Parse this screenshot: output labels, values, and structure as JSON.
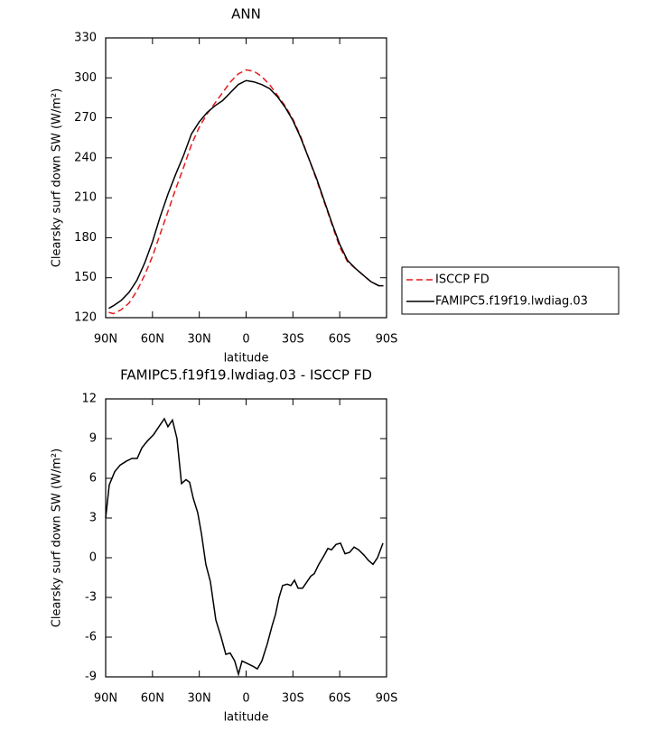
{
  "chart_data": [
    {
      "type": "line",
      "title": "ANN",
      "xlabel": "latitude",
      "ylabel": "Clearsky surf down SW (W/m²)",
      "xlim": [
        90,
        -90
      ],
      "xticks": [
        {
          "value": 90,
          "label": "90N"
        },
        {
          "value": 60,
          "label": "60N"
        },
        {
          "value": 30,
          "label": "30N"
        },
        0,
        {
          "value": -30,
          "label": "30S"
        },
        {
          "value": -60,
          "label": "60S"
        },
        {
          "value": -90,
          "label": "90S"
        }
      ],
      "ylim": [
        120,
        330
      ],
      "yticks": [
        120,
        150,
        180,
        210,
        240,
        270,
        300,
        330
      ],
      "legend": "right",
      "x": [
        88,
        85,
        80,
        75,
        70,
        65,
        60,
        55,
        50,
        45,
        40,
        35,
        30,
        25,
        20,
        15,
        10,
        5,
        0,
        -5,
        -10,
        -15,
        -20,
        -25,
        -30,
        -35,
        -40,
        -45,
        -50,
        -55,
        -60,
        -65,
        -70,
        -75,
        -80,
        -85,
        -88
      ],
      "series": [
        {
          "name": "ISCCP FD",
          "color": "#e41a1c",
          "line_style": "dashed",
          "values": [
            124,
            123,
            126,
            131,
            140,
            152,
            166,
            183,
            200,
            217,
            233,
            250,
            263,
            273,
            281,
            289,
            297,
            303,
            306,
            305,
            301,
            295,
            287,
            279,
            269,
            256,
            240,
            224,
            207,
            190,
            173,
            162,
            157,
            152,
            147,
            144,
            144
          ]
        },
        {
          "name": "FAMIPC5.f19f19.lwdiag.03",
          "color": "#000000",
          "line_style": "solid",
          "values": [
            127,
            129,
            133,
            139,
            148,
            161,
            177,
            196,
            213,
            228,
            242,
            258,
            267,
            274,
            279,
            283,
            289,
            295,
            298,
            297,
            295,
            292,
            286,
            278,
            268,
            255,
            240,
            225,
            208,
            191,
            175,
            163,
            157,
            152,
            147,
            144,
            144
          ]
        }
      ]
    },
    {
      "type": "line",
      "title": "FAMIPC5.f19f19.lwdiag.03 - ISCCP FD",
      "xlabel": "latitude",
      "ylabel": "Clearsky surf down SW (W/m²)",
      "xlim": [
        90,
        -90
      ],
      "xticks": [
        {
          "value": 90,
          "label": "90N"
        },
        {
          "value": 60,
          "label": "60N"
        },
        {
          "value": 30,
          "label": "30N"
        },
        0,
        {
          "value": -30,
          "label": "30S"
        },
        {
          "value": -60,
          "label": "60S"
        },
        {
          "value": -90,
          "label": "90S"
        }
      ],
      "ylim": [
        -9,
        12
      ],
      "yticks": [
        -9,
        -6,
        -3,
        0,
        3,
        6,
        9,
        12
      ],
      "x": [
        90,
        87.7,
        84.2,
        80.7,
        76.7,
        73.2,
        69.8,
        66.8,
        63.4,
        59.3,
        55.9,
        52.4,
        50.1,
        47.2,
        44.3,
        41.4,
        38.5,
        36.2,
        33.9,
        31.0,
        28.6,
        25.8,
        22.9,
        19.4,
        16.0,
        13.0,
        10.2,
        7.3,
        4.9,
        2.6,
        -0.9,
        -4.4,
        -7.2,
        -10.1,
        -13.6,
        -16.5,
        -18.8,
        -21.1,
        -23.4,
        -26.3,
        -28.7,
        -31.0,
        -33.3,
        -36.2,
        -39.1,
        -41.4,
        -43.7,
        -46.6,
        -50.1,
        -52.4,
        -54.7,
        -57.6,
        -60.5,
        -63.4,
        -66.3,
        -69.2,
        -72.1,
        -75.5,
        -78.4,
        -81.3,
        -84.2,
        -87.7
      ],
      "series": [
        {
          "color": "#000000",
          "line_style": "solid",
          "values": [
            3.0,
            5.5,
            6.5,
            7.0,
            7.3,
            7.5,
            7.5,
            8.3,
            8.8,
            9.3,
            9.9,
            10.5,
            9.9,
            10.4,
            9.0,
            5.6,
            5.9,
            5.7,
            4.5,
            3.4,
            1.8,
            -0.5,
            -1.8,
            -4.7,
            -6.0,
            -7.3,
            -7.2,
            -7.8,
            -8.8,
            -7.8,
            -8.0,
            -8.2,
            -8.4,
            -7.8,
            -6.5,
            -5.2,
            -4.3,
            -3.0,
            -2.1,
            -2.0,
            -2.1,
            -1.7,
            -2.3,
            -2.3,
            -1.8,
            -1.4,
            -1.2,
            -0.5,
            0.2,
            0.7,
            0.6,
            1.0,
            1.1,
            0.3,
            0.4,
            0.8,
            0.6,
            0.2,
            -0.2,
            -0.5,
            0.0,
            1.1
          ]
        }
      ]
    }
  ]
}
